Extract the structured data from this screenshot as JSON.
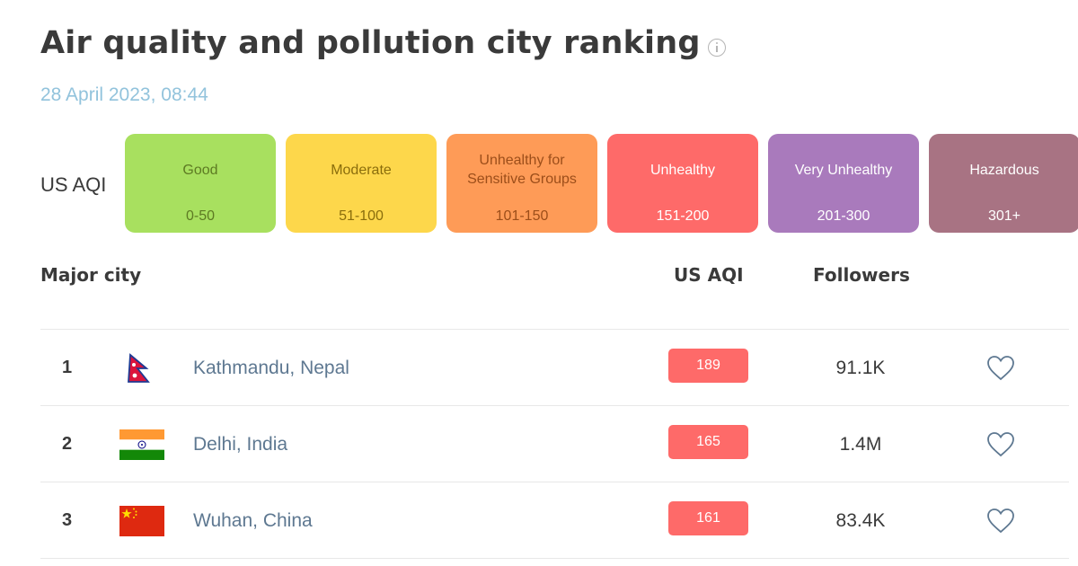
{
  "header": {
    "title": "Air quality and pollution city ranking",
    "date": "28 April 2023, 08:44"
  },
  "scale": {
    "label": "US AQI",
    "levels": [
      {
        "name": "Good",
        "range": "0-50",
        "bg": "#a8e05f",
        "fg": "#5d7a23"
      },
      {
        "name": "Moderate",
        "range": "51-100",
        "bg": "#fdd74b",
        "fg": "#8a6d0c"
      },
      {
        "name": "Unhealthy for Sensitive Groups",
        "range": "101-150",
        "bg": "#fe9b57",
        "fg": "#9c4e1a"
      },
      {
        "name": "Unhealthy",
        "range": "151-200",
        "bg": "#fe6a69",
        "fg": "#ffffff"
      },
      {
        "name": "Very Unhealthy",
        "range": "201-300",
        "bg": "#a97abc",
        "fg": "#ffffff"
      },
      {
        "name": "Hazardous",
        "range": "301+",
        "bg": "#a87383",
        "fg": "#ffffff"
      }
    ]
  },
  "table": {
    "headers": {
      "city": "Major city",
      "aqi": "US AQI",
      "followers": "Followers"
    },
    "rows": [
      {
        "rank": "1",
        "flag": "nepal",
        "city": "Kathmandu, Nepal",
        "aqi": "189",
        "aqi_color": "#fe6a69",
        "followers": "91.1K"
      },
      {
        "rank": "2",
        "flag": "india",
        "city": "Delhi, India",
        "aqi": "165",
        "aqi_color": "#fe6a69",
        "followers": "1.4M"
      },
      {
        "rank": "3",
        "flag": "china",
        "city": "Wuhan, China",
        "aqi": "161",
        "aqi_color": "#fe6a69",
        "followers": "83.4K"
      }
    ]
  },
  "icons": {
    "info": "info-icon",
    "follow": "heart-outline-icon"
  }
}
